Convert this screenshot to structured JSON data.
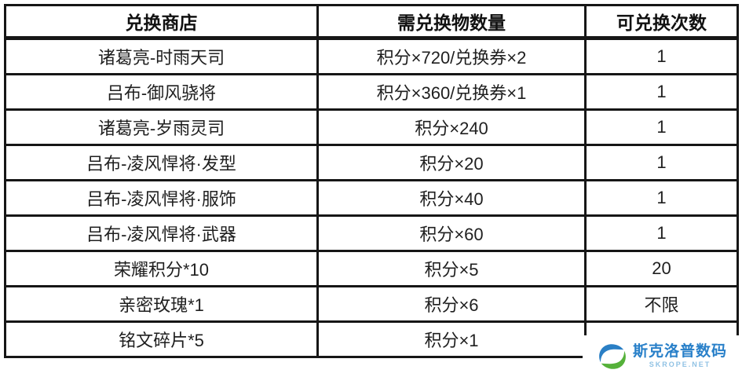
{
  "table": {
    "headers": [
      "兑换商店",
      "需兑换物数量",
      "可兑换次数"
    ],
    "rows": [
      [
        "诸葛亮-时雨天司",
        "积分×720/兑换券×2",
        "1"
      ],
      [
        "吕布-御风骁将",
        "积分×360/兑换券×1",
        "1"
      ],
      [
        "诸葛亮-岁雨灵司",
        "积分×240",
        "1"
      ],
      [
        "吕布-凌风悍将·发型",
        "积分×20",
        "1"
      ],
      [
        "吕布-凌风悍将·服饰",
        "积分×40",
        "1"
      ],
      [
        "吕布-凌风悍将·武器",
        "积分×60",
        "1"
      ],
      [
        "荣耀积分*10",
        "积分×5",
        "20"
      ],
      [
        "亲密玫瑰*1",
        "积分×6",
        "不限"
      ],
      [
        "铭文碎片*5",
        "积分×1",
        ""
      ]
    ],
    "border_color": "#161616",
    "text_color": "#1f1f1f"
  },
  "watermark": {
    "name": "斯克洛普数码",
    "site": "SKROPE.NET",
    "name_color": "#2980c9",
    "site_color": "#90c2e4",
    "logo_blue": "#2a7fc5",
    "logo_green": "#55b13a"
  }
}
